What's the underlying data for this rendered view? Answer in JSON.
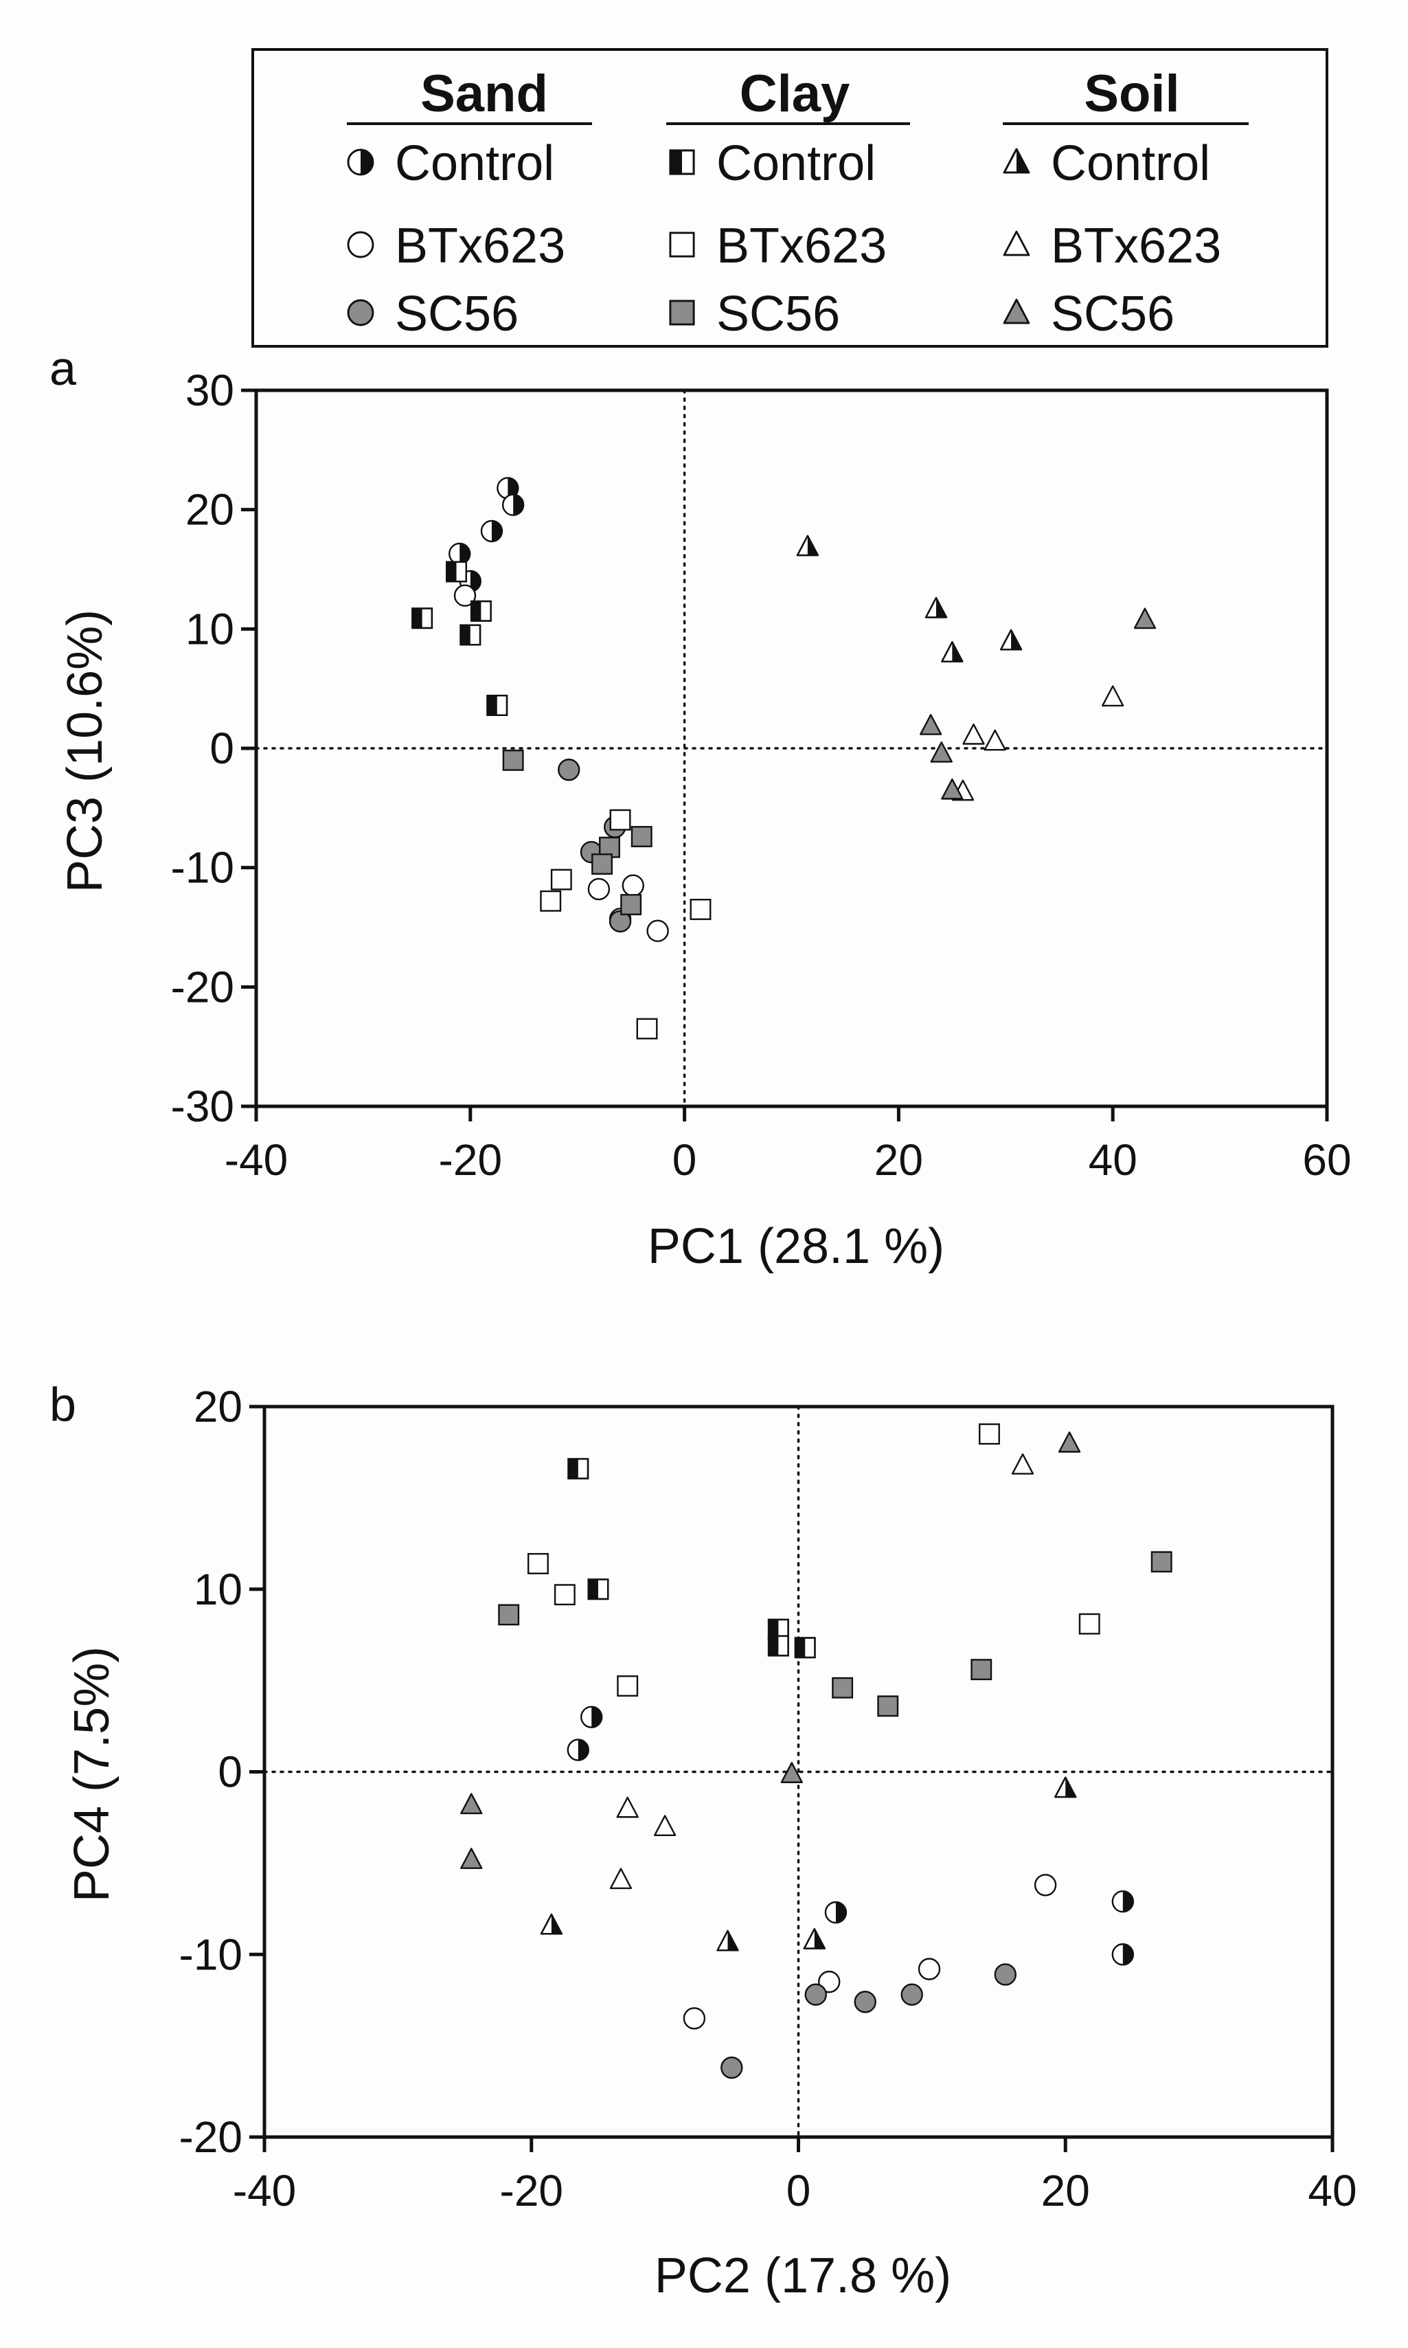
{
  "legend": {
    "groups": [
      {
        "header": "Sand",
        "shape": "circle",
        "entries": [
          {
            "label": "Control",
            "fill": "half"
          },
          {
            "label": "BTx623",
            "fill": "open"
          },
          {
            "label": "SC56",
            "fill": "gray"
          }
        ]
      },
      {
        "header": "Clay",
        "shape": "square",
        "entries": [
          {
            "label": "Control",
            "fill": "half"
          },
          {
            "label": "BTx623",
            "fill": "open"
          },
          {
            "label": "SC56",
            "fill": "gray"
          }
        ]
      },
      {
        "header": "Soil",
        "shape": "triangle",
        "entries": [
          {
            "label": "Control",
            "fill": "half"
          },
          {
            "label": "BTx623",
            "fill": "open"
          },
          {
            "label": "SC56",
            "fill": "gray"
          }
        ]
      }
    ]
  },
  "colors": {
    "half": "#111111",
    "open": "#ffffff",
    "gray": "#8c8c8c",
    "stroke": "#111111"
  },
  "chart_data": [
    {
      "panel": "a",
      "type": "scatter",
      "xlabel": "PC1 (28.1 %)",
      "ylabel": "PC3 (10.6%)",
      "xlim": [
        -40,
        60
      ],
      "ylim": [
        -30,
        30
      ],
      "xticks": [
        -40,
        -20,
        0,
        20,
        40,
        60
      ],
      "yticks": [
        -30,
        -20,
        -10,
        0,
        10,
        20,
        30
      ],
      "xtick_labels": [
        "-40",
        "-20",
        "0",
        "20",
        "40",
        "60"
      ],
      "ytick_labels": [
        "-30",
        "-20",
        "-10",
        "0",
        "10",
        "20",
        "30"
      ],
      "series": [
        {
          "name": "Sand Control",
          "shape": "circle",
          "fill": "half",
          "points": [
            [
              -16.5,
              21.8
            ],
            [
              -16,
              20.4
            ],
            [
              -18,
              18.2
            ],
            [
              -21,
              16.3
            ],
            [
              -20,
              14
            ]
          ]
        },
        {
          "name": "Sand BTx623",
          "shape": "circle",
          "fill": "open",
          "points": [
            [
              -20.5,
              12.8
            ],
            [
              -8,
              -11.8
            ],
            [
              -4.8,
              -11.5
            ],
            [
              -2.5,
              -15.3
            ],
            [
              -6,
              -14.3
            ]
          ]
        },
        {
          "name": "Sand SC56",
          "shape": "circle",
          "fill": "gray",
          "points": [
            [
              -10.8,
              -1.8
            ],
            [
              -6.5,
              -6.6
            ],
            [
              -8.7,
              -8.7
            ],
            [
              -6,
              -14.5
            ]
          ]
        },
        {
          "name": "Clay Control",
          "shape": "square",
          "fill": "half",
          "points": [
            [
              -24.5,
              10.9
            ],
            [
              -21.3,
              14.8
            ],
            [
              -19,
              11.5
            ],
            [
              -20,
              9.5
            ],
            [
              -17.5,
              3.6
            ]
          ]
        },
        {
          "name": "Clay BTx623",
          "shape": "square",
          "fill": "open",
          "points": [
            [
              -6,
              -6
            ],
            [
              -11.5,
              -11
            ],
            [
              -12.5,
              -12.8
            ],
            [
              1.5,
              -13.5
            ],
            [
              -3.5,
              -23.5
            ]
          ]
        },
        {
          "name": "Clay SC56",
          "shape": "square",
          "fill": "gray",
          "points": [
            [
              -16,
              -1
            ],
            [
              -7,
              -8.3
            ],
            [
              -7.7,
              -9.7
            ],
            [
              -4,
              -7.4
            ],
            [
              -5,
              -13.1
            ]
          ]
        },
        {
          "name": "Soil Control",
          "shape": "triangle",
          "fill": "half",
          "points": [
            [
              11.5,
              16.9
            ],
            [
              23.5,
              11.7
            ],
            [
              25,
              8
            ],
            [
              30.5,
              9
            ]
          ]
        },
        {
          "name": "Soil BTx623",
          "shape": "triangle",
          "fill": "open",
          "points": [
            [
              27,
              1.1
            ],
            [
              29,
              0.6
            ],
            [
              26,
              -3.6
            ],
            [
              40,
              4.3
            ]
          ]
        },
        {
          "name": "Soil SC56",
          "shape": "triangle",
          "fill": "gray",
          "points": [
            [
              23,
              1.9
            ],
            [
              24,
              -0.4
            ],
            [
              25,
              -3.5
            ],
            [
              43,
              10.8
            ]
          ]
        }
      ]
    },
    {
      "panel": "b",
      "type": "scatter",
      "xlabel": "PC2 (17.8 %)",
      "ylabel": "PC4 (7.5%)",
      "xlim": [
        -40,
        40
      ],
      "ylim": [
        -20,
        20
      ],
      "xticks": [
        -40,
        -20,
        0,
        20,
        40
      ],
      "yticks": [
        -20,
        -10,
        0,
        10,
        20
      ],
      "xtick_labels": [
        "-40",
        "-20",
        "0",
        "20",
        "40"
      ],
      "ytick_labels": [
        "-20",
        "-10",
        "0",
        "10",
        "20"
      ],
      "series": [
        {
          "name": "Sand Control",
          "shape": "circle",
          "fill": "half",
          "points": [
            [
              -15.5,
              3
            ],
            [
              -16.5,
              1.2
            ],
            [
              2.8,
              -7.7
            ],
            [
              24.3,
              -7.1
            ],
            [
              24.3,
              -10
            ]
          ]
        },
        {
          "name": "Sand BTx623",
          "shape": "circle",
          "fill": "open",
          "points": [
            [
              -7.8,
              -13.5
            ],
            [
              2.3,
              -11.5
            ],
            [
              9.8,
              -10.8
            ],
            [
              18.5,
              -6.2
            ]
          ]
        },
        {
          "name": "Sand SC56",
          "shape": "circle",
          "fill": "gray",
          "points": [
            [
              -5,
              -16.2
            ],
            [
              1.3,
              -12.2
            ],
            [
              5,
              -12.6
            ],
            [
              8.5,
              -12.2
            ],
            [
              15.5,
              -11.1
            ]
          ]
        },
        {
          "name": "Clay Control",
          "shape": "square",
          "fill": "half",
          "points": [
            [
              -16.5,
              16.6
            ],
            [
              -15,
              10
            ],
            [
              -1.5,
              7.8
            ],
            [
              -1.5,
              6.9
            ],
            [
              0.5,
              6.8
            ]
          ]
        },
        {
          "name": "Clay BTx623",
          "shape": "square",
          "fill": "open",
          "points": [
            [
              -19.5,
              11.4
            ],
            [
              -17.5,
              9.7
            ],
            [
              -12.8,
              4.7
            ],
            [
              14.3,
              18.5
            ],
            [
              21.8,
              8.1
            ]
          ]
        },
        {
          "name": "Clay SC56",
          "shape": "square",
          "fill": "gray",
          "points": [
            [
              -21.7,
              8.6
            ],
            [
              3.3,
              4.6
            ],
            [
              6.7,
              3.6
            ],
            [
              13.7,
              5.6
            ],
            [
              27.2,
              11.5
            ]
          ]
        },
        {
          "name": "Soil Control",
          "shape": "triangle",
          "fill": "half",
          "points": [
            [
              -18.5,
              -8.4
            ],
            [
              -5.3,
              -9.3
            ],
            [
              1.2,
              -9.2
            ],
            [
              20,
              -0.9
            ]
          ]
        },
        {
          "name": "Soil BTx623",
          "shape": "triangle",
          "fill": "open",
          "points": [
            [
              -12.8,
              -2
            ],
            [
              -10,
              -3
            ],
            [
              -13.3,
              -5.9
            ],
            [
              16.8,
              16.8
            ]
          ]
        },
        {
          "name": "Soil SC56",
          "shape": "triangle",
          "fill": "gray",
          "points": [
            [
              -24.5,
              -1.8
            ],
            [
              -24.5,
              -4.8
            ],
            [
              -0.5,
              -0.1
            ],
            [
              20.3,
              18
            ]
          ]
        }
      ]
    }
  ]
}
